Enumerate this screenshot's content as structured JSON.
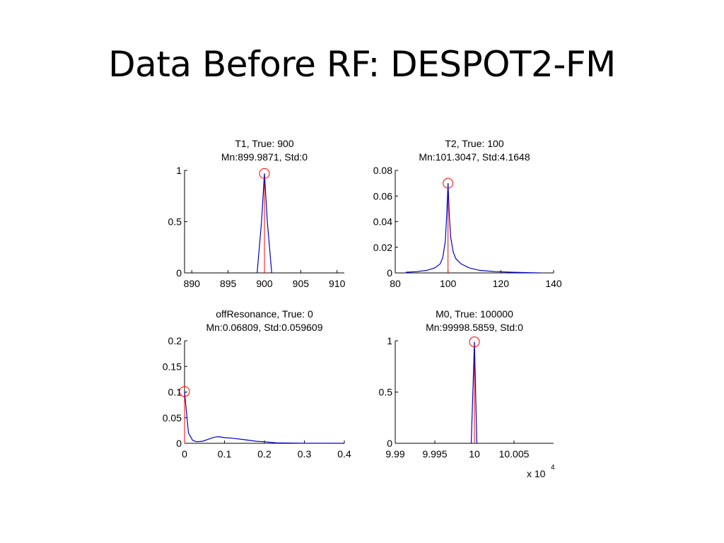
{
  "slide": {
    "title": "Data Before RF: DESPOT2-FM"
  },
  "colors": {
    "histogram": "#0000cc",
    "true_line": "#ff0000",
    "marker": "#ff0000",
    "axes": "#000000"
  },
  "chart_data": [
    {
      "type": "line",
      "title": "T1, True: 900",
      "subtitle": "Mn:899.9871, Std:0",
      "xlim": [
        889,
        911
      ],
      "ylim": [
        0,
        1
      ],
      "xticks": [
        890,
        895,
        900,
        905,
        910
      ],
      "yticks": [
        0,
        0.5,
        1
      ],
      "ytick_labels": [
        "0",
        "0.5",
        "1"
      ],
      "true_value": 900,
      "peak": [
        900,
        0.97
      ],
      "x": [
        899,
        899.6,
        900,
        900.4,
        901
      ],
      "y": [
        0,
        0.5,
        0.97,
        0.5,
        0
      ]
    },
    {
      "type": "line",
      "title": "T2, True: 100",
      "subtitle": "Mn:101.3047, Std:4.1648",
      "xlim": [
        80,
        140
      ],
      "ylim": [
        0,
        0.08
      ],
      "xticks": [
        80,
        100,
        120,
        140
      ],
      "yticks": [
        0,
        0.02,
        0.04,
        0.06,
        0.08
      ],
      "ytick_labels": [
        "0",
        "0.02",
        "0.04",
        "0.06",
        "0.08"
      ],
      "true_value": 100,
      "peak": [
        100,
        0.07
      ],
      "x": [
        84,
        88,
        92,
        95,
        97,
        98,
        99,
        99.5,
        100,
        100.5,
        101,
        102,
        103,
        105,
        108,
        112,
        118,
        125,
        130,
        135
      ],
      "y": [
        0.0005,
        0.001,
        0.002,
        0.004,
        0.007,
        0.012,
        0.025,
        0.045,
        0.07,
        0.045,
        0.028,
        0.016,
        0.011,
        0.007,
        0.004,
        0.002,
        0.001,
        0.0005,
        0.0002,
        0
      ]
    },
    {
      "type": "line",
      "title": "offResonance, True: 0",
      "subtitle": "Mn:0.06809, Std:0.059609",
      "xlim": [
        0,
        0.4
      ],
      "ylim": [
        0,
        0.2
      ],
      "xticks": [
        0,
        0.1,
        0.2,
        0.3,
        0.4
      ],
      "yticks": [
        0,
        0.05,
        0.1,
        0.15,
        0.2
      ],
      "ytick_labels": [
        "0",
        "0.05",
        "0.1",
        "0.15",
        "0.2"
      ],
      "true_value": 0,
      "peak": [
        0,
        0.101
      ],
      "x": [
        0,
        0.005,
        0.01,
        0.02,
        0.03,
        0.045,
        0.06,
        0.075,
        0.085,
        0.1,
        0.12,
        0.15,
        0.18,
        0.2,
        0.23,
        0.26,
        0.3,
        0.35,
        0.4
      ],
      "y": [
        0.101,
        0.06,
        0.02,
        0.006,
        0.003,
        0.004,
        0.008,
        0.012,
        0.013,
        0.011,
        0.01,
        0.007,
        0.004,
        0.003,
        0.001,
        0.0005,
        0.0002,
        0.0001,
        0
      ]
    },
    {
      "type": "line",
      "title": "M0, True: 100000",
      "subtitle": "Mn:99998.5859, Std:0",
      "xlim": [
        99990,
        100010
      ],
      "ylim": [
        0,
        1
      ],
      "xticks": [
        99990,
        99995,
        100000,
        100005
      ],
      "xtick_labels": [
        "9.99",
        "9.995",
        "10",
        "10.005"
      ],
      "yticks": [
        0,
        0.5,
        1
      ],
      "ytick_labels": [
        "0",
        "0.5",
        "1"
      ],
      "x_multiplier": "x 10",
      "x_multiplier_exp": "4",
      "true_value": 100000,
      "peak": [
        100000,
        0.99
      ],
      "x": [
        99999.6,
        99999.8,
        100000,
        100000.15,
        100000.3
      ],
      "y": [
        0,
        0.5,
        0.99,
        0.5,
        0
      ]
    }
  ]
}
